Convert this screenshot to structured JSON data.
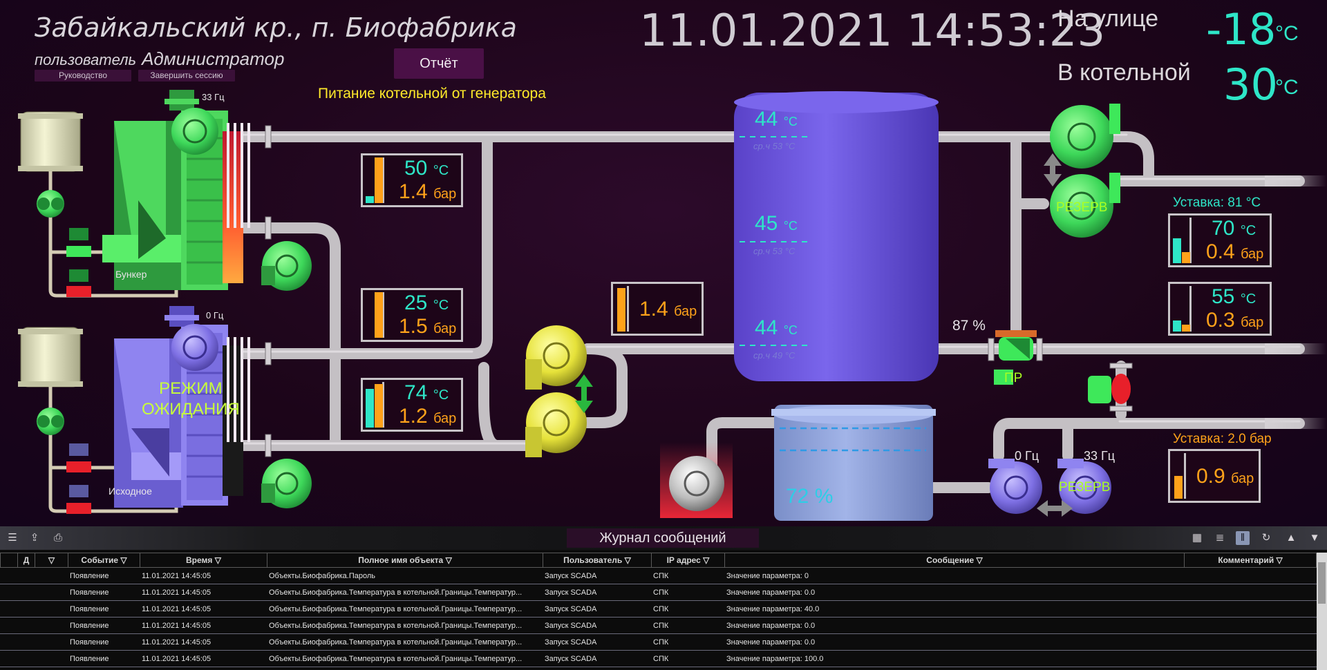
{
  "header": {
    "location": "Забайкальский кр., п. Биофабрика",
    "user_label": "пользователь",
    "user_name": "Администратор",
    "btn_manual": "Руководство",
    "btn_end_session": "Завершить сессию",
    "btn_report": "Отчёт",
    "generator_note": "Питание котельной от генератора",
    "datetime": "11.01.2021 14:53:23",
    "outdoor_label": "На улице",
    "outdoor_value": "-18",
    "indoor_label": "В котельной",
    "indoor_value": "30",
    "temp_unit": "°С"
  },
  "boilers": {
    "boiler1": {
      "fan_freq": "33 Гц",
      "bunker_label": "Бункер"
    },
    "boiler2": {
      "fan_freq": "0 Гц",
      "mode": "РЕЖИМ\nОЖИДАНИЯ",
      "source_label": "Исходное"
    }
  },
  "gauges": {
    "g1": {
      "t": "50",
      "p": "1.4",
      "t_level": 0.15,
      "p_level": 1.0
    },
    "g2": {
      "t": "25",
      "p": "1.5",
      "p_level": 1.0
    },
    "g3": {
      "t": "74",
      "p": "1.2",
      "t_level": 0.85,
      "p_level": 0.95
    },
    "g4": {
      "p": "1.4",
      "p_level": 0.95
    },
    "g5": {
      "setpoint": "Уставка: 81 °С",
      "t": "70",
      "p": "0.4",
      "t_level": 0.55,
      "p_level": 0.25
    },
    "g6": {
      "t": "55",
      "p": "0.3",
      "t_level": 0.25,
      "p_level": 0.15
    },
    "g7": {
      "setpoint": "Уставка: 2.0 бар",
      "p": "0.9",
      "p_level": 0.5
    },
    "units": {
      "temp": "°С",
      "pressure": "бар"
    }
  },
  "tank": {
    "levels": [
      {
        "t": "44",
        "avg": "ср.ч 53 °С"
      },
      {
        "t": "45",
        "avg": "ср.ч 53 °С"
      },
      {
        "t": "44",
        "avg": "ср.ч 49 °С"
      }
    ]
  },
  "storage": {
    "level": "72 %"
  },
  "pumps": {
    "reserve1": "РЕЗЕРВ",
    "valve_pct": "87 %",
    "valve_label": "ПР",
    "make_up_freq1": "0 Гц",
    "make_up_freq2": "33 Гц",
    "reserve2": "РЕЗЕРВ"
  },
  "colors": {
    "pipe": "#c4c0c4",
    "green": "#3ee85a",
    "yellow": "#e8e63a",
    "violet": "#8a7ae8",
    "tank": "#6a52e0",
    "orange": "#ffa21a",
    "cyan": "#2ee6c8"
  },
  "journal": {
    "title": "Журнал сообщений",
    "columns": [
      "",
      "Д",
      "",
      "Событие",
      "Время",
      "Полное имя объекта",
      "Пользователь",
      "IP адрес",
      "Сообщение",
      "Комментарий"
    ],
    "rows": [
      [
        "Появление",
        "11.01.2021 14:45:05",
        "Объекты.Биофабрика.Пароль",
        "Запуск SCADA",
        "СПК",
        "Значение параметра: 0"
      ],
      [
        "Появление",
        "11.01.2021 14:45:05",
        "Объекты.Биофабрика.Температура в котельной.Границы.Температур...",
        "Запуск SCADA",
        "СПК",
        "Значение параметра: 0.0"
      ],
      [
        "Появление",
        "11.01.2021 14:45:05",
        "Объекты.Биофабрика.Температура в котельной.Границы.Температур...",
        "Запуск SCADA",
        "СПК",
        "Значение параметра: 40.0"
      ],
      [
        "Появление",
        "11.01.2021 14:45:05",
        "Объекты.Биофабрика.Температура в котельной.Границы.Температур...",
        "Запуск SCADA",
        "СПК",
        "Значение параметра: 0.0"
      ],
      [
        "Появление",
        "11.01.2021 14:45:05",
        "Объекты.Биофабрика.Температура в котельной.Границы.Температур...",
        "Запуск SCADA",
        "СПК",
        "Значение параметра: 0.0"
      ],
      [
        "Появление",
        "11.01.2021 14:45:05",
        "Объекты.Биофабрика.Температура в котельной.Границы.Температур...",
        "Запуск SCADA",
        "СПК",
        "Значение параметра: 100.0"
      ]
    ],
    "toolbar_left_icons": [
      "list-icon",
      "export-icon",
      "print-icon"
    ],
    "toolbar_right_icons": [
      "calendar-icon",
      "document-icon",
      "columns-icon",
      "refresh-icon",
      "arrow-up-icon",
      "arrow-down-icon"
    ]
  }
}
